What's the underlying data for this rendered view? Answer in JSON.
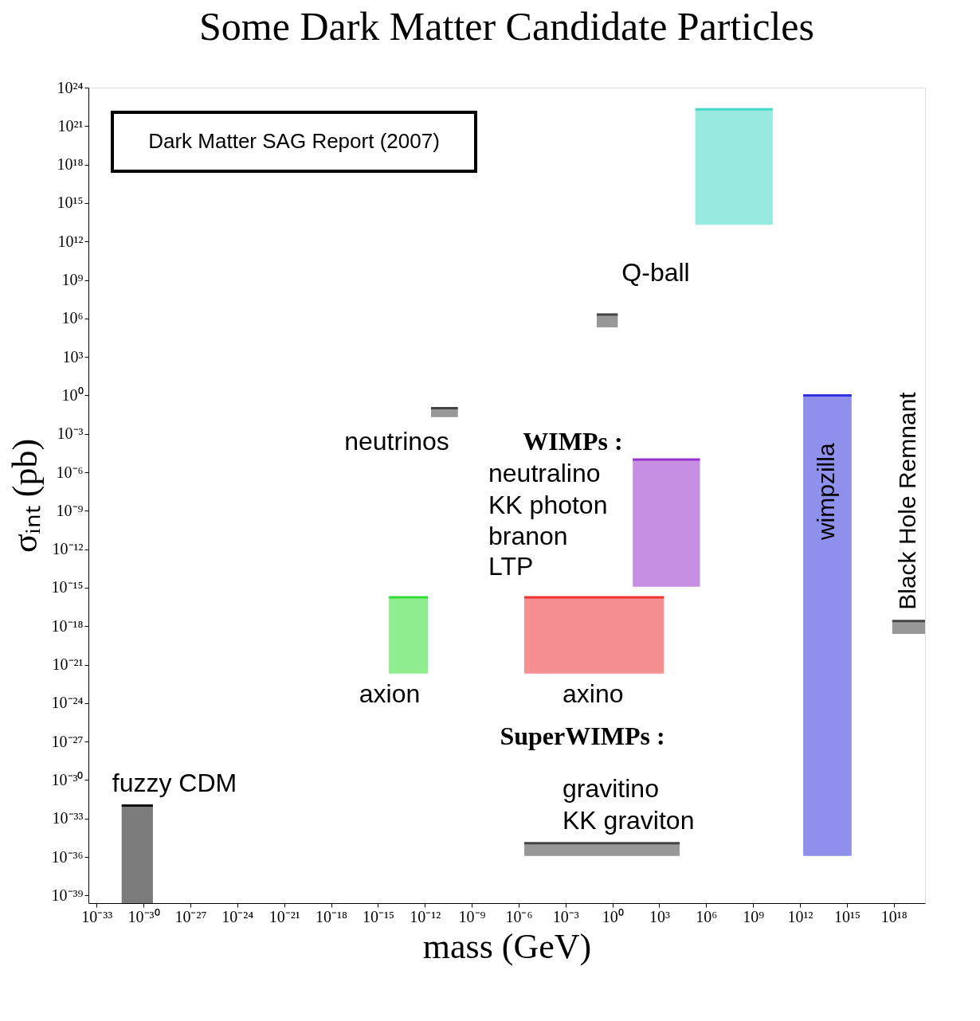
{
  "chart_data": {
    "type": "line",
    "title": "Some Dark Matter Candidate Particles",
    "xlabel": "mass (GeV)",
    "ylabel": "σᵢₙₜ (pb)",
    "log": "xy",
    "grid": false,
    "xlim": [
      3e-34,
      1e+20
    ],
    "ylim": [
      2.5e-40,
      1e+24
    ],
    "xticks": [
      {
        "value": 1e-33,
        "label": "10⁻³³"
      },
      {
        "value": 1e-30,
        "label": "10⁻³⁰"
      },
      {
        "value": 1e-27,
        "label": "10⁻²⁷"
      },
      {
        "value": 1e-24,
        "label": "10⁻²⁴"
      },
      {
        "value": 1e-21,
        "label": "10⁻²¹"
      },
      {
        "value": 1e-18,
        "label": "10⁻¹⁸"
      },
      {
        "value": 1e-15,
        "label": "10⁻¹⁵"
      },
      {
        "value": 1e-12,
        "label": "10⁻¹²"
      },
      {
        "value": 1e-09,
        "label": "10⁻⁹"
      },
      {
        "value": 1e-06,
        "label": "10⁻⁶"
      },
      {
        "value": 0.001,
        "label": "10⁻³"
      },
      {
        "value": 1,
        "label": "10⁰"
      },
      {
        "value": 1000.0,
        "label": "10³"
      },
      {
        "value": 1000000.0,
        "label": "10⁶"
      },
      {
        "value": 1000000000.0,
        "label": "10⁹"
      },
      {
        "value": 1000000000000.0,
        "label": "10¹²"
      },
      {
        "value": 1000000000000000.0,
        "label": "10¹⁵"
      },
      {
        "value": 1e+18,
        "label": "10¹⁸"
      }
    ],
    "yticks": [
      {
        "value": 1e+24,
        "label": "10²⁴"
      },
      {
        "value": 1e+21,
        "label": "10²¹"
      },
      {
        "value": 1e+18,
        "label": "10¹⁸"
      },
      {
        "value": 1000000000000000.0,
        "label": "10¹⁵"
      },
      {
        "value": 1000000000000.0,
        "label": "10¹²"
      },
      {
        "value": 1000000000.0,
        "label": "10⁹"
      },
      {
        "value": 1000000.0,
        "label": "10⁶"
      },
      {
        "value": 1000.0,
        "label": "10³"
      },
      {
        "value": 1,
        "label": "10⁰"
      },
      {
        "value": 0.001,
        "label": "10⁻³"
      },
      {
        "value": 1e-06,
        "label": "10⁻⁶"
      },
      {
        "value": 1e-09,
        "label": "10⁻⁹"
      },
      {
        "value": 1e-12,
        "label": "10⁻¹²"
      },
      {
        "value": 1e-15,
        "label": "10⁻¹⁵"
      },
      {
        "value": 1e-18,
        "label": "10⁻¹⁸"
      },
      {
        "value": 1e-21,
        "label": "10⁻²¹"
      },
      {
        "value": 1e-24,
        "label": "10⁻²⁴"
      },
      {
        "value": 1e-27,
        "label": "10⁻²⁷"
      },
      {
        "value": 1e-30,
        "label": "10⁻³⁰"
      },
      {
        "value": 1e-33,
        "label": "10⁻³³"
      },
      {
        "value": 1e-36,
        "label": "10⁻³⁶"
      },
      {
        "value": 1e-39,
        "label": "10⁻³⁹"
      }
    ],
    "series": [
      {
        "color": "#111111",
        "x": [
          4e-32,
          4e-30
        ],
        "values": [
          1e-32,
          1e-32
        ],
        "lower": [
          2.5e-40,
          2.5e-40
        ],
        "upper": [
          1e-32,
          1e-32
        ]
      },
      {
        "color": "#33dd33",
        "x": [
          5e-15,
          1.6e-12
        ],
        "values": [
          1.8e-16,
          1.8e-16
        ],
        "lower": [
          2e-22,
          2e-22
        ],
        "upper": [
          1.8e-16,
          1.8e-16
        ]
      },
      {
        "color": "#444444",
        "x": [
          2.5e-12,
          1.3e-10
        ],
        "values": [
          0.1,
          0.1
        ],
        "lower": [
          0.02,
          0.02
        ],
        "upper": [
          0.1,
          0.1
        ]
      },
      {
        "color": "#444444",
        "x": [
          0.1,
          2.2
        ],
        "values": [
          2000000.0,
          2000000.0
        ],
        "lower": [
          200000.0,
          200000.0
        ],
        "upper": [
          2000000.0,
          2000000.0
        ]
      },
      {
        "color": "#44d8c8",
        "x": [
          200000.0,
          18000000000.0
        ],
        "values": [
          2e+22,
          2e+22
        ],
        "lower": [
          20000000000000.0,
          20000000000000.0
        ],
        "upper": [
          2e+22,
          2e+22
        ]
      },
      {
        "color": "#9933cc",
        "x": [
          20.0,
          400000.0
        ],
        "values": [
          1e-05,
          1e-05
        ],
        "lower": [
          1.2e-15,
          1.2e-15
        ],
        "upper": [
          1e-05,
          1e-05
        ]
      },
      {
        "color": "#ee3333",
        "x": [
          2.3e-06,
          2000.0
        ],
        "values": [
          1.8e-16,
          1.8e-16
        ],
        "lower": [
          2e-22,
          2e-22
        ],
        "upper": [
          1.8e-16,
          1.8e-16
        ]
      },
      {
        "color": "#444444",
        "x": [
          2.3e-06,
          20000.0
        ],
        "values": [
          1.2e-35,
          1.2e-35
        ],
        "lower": [
          1.2e-36,
          1.2e-36
        ],
        "upper": [
          1.2e-35,
          1.2e-35
        ]
      },
      {
        "name": "wimpzilla",
        "color": "#3333dd",
        "x": [
          1600000000000.0,
          2000000000000000.0
        ],
        "values": [
          1,
          1
        ],
        "lower": [
          1.2e-36,
          1.2e-36
        ],
        "upper": [
          1,
          1
        ]
      },
      {
        "name": "Black Hole Remnant",
        "color": "#444444",
        "x": [
          8e+17,
          1e+20
        ],
        "values": [
          2.5e-18,
          2.5e-18
        ],
        "lower": [
          2.5e-19,
          2.5e-19
        ],
        "upper": [
          2.5e-18,
          2.5e-18
        ]
      }
    ],
    "annotations": [
      "Dark Matter SAG Report (2007)",
      "fuzzy CDM",
      "axion",
      "neutrinos",
      "Q-ball",
      "WIMPs :",
      "neutralino",
      "KK photon",
      "branon",
      "LTP",
      "axino",
      "SuperWIMPs :",
      "gravitino",
      "KK graviton"
    ]
  }
}
